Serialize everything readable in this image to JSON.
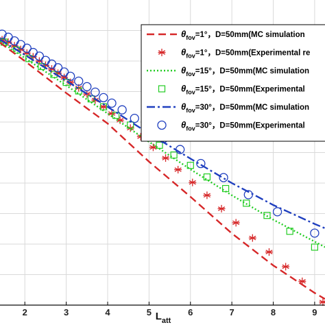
{
  "chart_data": {
    "type": "line",
    "title": "",
    "xlabel": "L",
    "xlabel_sub": "att",
    "ylabel": "",
    "xlim": [
      1.4,
      9.25
    ],
    "ylim": [
      0,
      10
    ],
    "x_ticks": [
      "2",
      "3",
      "4",
      "5",
      "6",
      "7",
      "8",
      "9"
    ],
    "grid": true,
    "legend_position": "top-right",
    "series": [
      {
        "label_main": "=1°，D=50mm(MC simulation",
        "kind": "line",
        "dash": "dashed",
        "color": "#d62728",
        "x": [
          1.4,
          2,
          3,
          4,
          5,
          6,
          7,
          8,
          9,
          9.25
        ],
        "y": [
          8.6,
          8.0,
          6.95,
          5.95,
          4.7,
          3.55,
          2.35,
          1.3,
          0.4,
          0.2
        ]
      },
      {
        "label_main": "=1°，D=50mm(Experimental re",
        "kind": "marker",
        "marker": "asterisk",
        "color": "#d62728",
        "x": [
          1.45,
          1.6,
          1.75,
          1.9,
          2.05,
          2.2,
          2.35,
          2.5,
          2.65,
          2.8,
          2.95,
          3.1,
          3.3,
          3.5,
          3.7,
          3.9,
          4.1,
          4.3,
          4.55,
          4.8,
          5.1,
          5.4,
          5.7,
          6.05,
          6.4,
          6.75,
          7.1,
          7.5,
          7.9,
          8.3,
          8.7,
          9.2
        ],
        "y": [
          8.7,
          8.62,
          8.5,
          8.38,
          8.26,
          8.14,
          8.0,
          7.86,
          7.74,
          7.6,
          7.46,
          7.3,
          7.12,
          6.92,
          6.72,
          6.5,
          6.28,
          6.06,
          5.8,
          5.52,
          5.17,
          4.82,
          4.44,
          4.02,
          3.6,
          3.16,
          2.7,
          2.2,
          1.74,
          1.26,
          0.78,
          0.1
        ]
      },
      {
        "label_main": "=15°，D=50mm(MC simulation",
        "kind": "line",
        "dash": "dotted",
        "color": "#22cc22",
        "x": [
          1.4,
          2,
          3,
          4,
          5,
          6,
          7,
          8,
          9,
          9.25
        ],
        "y": [
          8.65,
          8.1,
          7.2,
          6.28,
          5.35,
          4.45,
          3.6,
          2.8,
          2.08,
          1.9
        ]
      },
      {
        "label_main": "=15°，D=50mm(Experimental",
        "kind": "marker",
        "marker": "square",
        "color": "#22cc22",
        "x": [
          1.5,
          1.8,
          2.1,
          2.4,
          2.7,
          3.0,
          3.3,
          3.6,
          3.9,
          4.2,
          4.55,
          4.9,
          5.25,
          5.6,
          6.0,
          6.4,
          6.85,
          7.35,
          7.85,
          8.4,
          9.0
        ],
        "y": [
          8.62,
          8.36,
          8.08,
          7.82,
          7.56,
          7.3,
          7.02,
          6.76,
          6.5,
          6.22,
          5.9,
          5.56,
          5.24,
          4.92,
          4.58,
          4.2,
          3.82,
          3.34,
          2.94,
          2.42,
          1.9
        ]
      },
      {
        "label_main": "=30°，D=50mm(MC simulation",
        "kind": "line",
        "dash": "dashdot",
        "color": "#1f3fbf",
        "x": [
          1.4,
          2,
          3,
          4,
          5,
          6,
          7,
          8,
          9,
          9.25
        ],
        "y": [
          8.7,
          8.2,
          7.35,
          6.5,
          5.62,
          4.8,
          4.0,
          3.28,
          2.66,
          2.52
        ]
      },
      {
        "label_main": "=30°，D=50mm(Experimental",
        "kind": "marker",
        "marker": "circle",
        "color": "#1f3fbf",
        "x": [
          1.45,
          1.6,
          1.75,
          1.9,
          2.05,
          2.2,
          2.35,
          2.5,
          2.65,
          2.8,
          2.95,
          3.1,
          3.3,
          3.5,
          3.7,
          3.9,
          4.1,
          4.35,
          4.65,
          5.0,
          5.35,
          5.75,
          6.25,
          6.8,
          7.4,
          8.1,
          9.0
        ],
        "y": [
          8.88,
          8.78,
          8.66,
          8.54,
          8.42,
          8.28,
          8.16,
          8.02,
          7.9,
          7.78,
          7.64,
          7.5,
          7.34,
          7.16,
          6.98,
          6.8,
          6.62,
          6.4,
          6.12,
          5.78,
          5.46,
          5.1,
          4.64,
          4.18,
          3.62,
          3.06,
          2.36
        ]
      }
    ],
    "legend_symbol": "θ",
    "legend_symbol_sub": "fov"
  }
}
